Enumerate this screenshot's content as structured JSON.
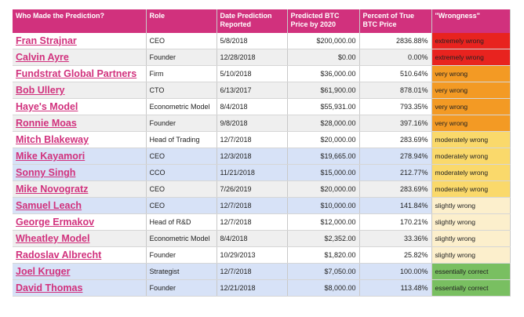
{
  "headers": [
    "Who Made the Prediction?",
    "Role",
    "Date Prediction Reported",
    "Predicted BTC Price by 2020",
    "Percent of True BTC Price",
    "\"Wrongness\""
  ],
  "colors": {
    "header_bg": "#d1317d",
    "name_text": "#d1317d",
    "extremely_wrong": "#e8231f",
    "very_wrong": "#f39a24",
    "moderately_wrong": "#fad96b",
    "slightly_wrong": "#fcefcc",
    "essentially_correct": "#79bf61"
  },
  "rows": [
    {
      "name": "Fran Strajnar",
      "role": "CEO",
      "date": "5/8/2018",
      "price": "$200,000.00",
      "percent": "2836.88%",
      "wrongness": "extremely wrong",
      "level": "extremely_wrong",
      "band": "white"
    },
    {
      "name": "Calvin Ayre",
      "role": "Founder",
      "date": "12/28/2018",
      "price": "$0.00",
      "percent": "0.00%",
      "wrongness": "extremely wrong",
      "level": "extremely_wrong",
      "band": "grey"
    },
    {
      "name": "Fundstrat Global Partners",
      "role": "Firm",
      "date": "5/10/2018",
      "price": "$36,000.00",
      "percent": "510.64%",
      "wrongness": "very wrong",
      "level": "very_wrong",
      "band": "white"
    },
    {
      "name": "Bob Ullery",
      "role": "CTO",
      "date": "6/13/2017",
      "price": "$61,900.00",
      "percent": "878.01%",
      "wrongness": "very wrong",
      "level": "very_wrong",
      "band": "grey"
    },
    {
      "name": "Haye's Model",
      "role": "Econometric Model",
      "date": "8/4/2018",
      "price": "$55,931.00",
      "percent": "793.35%",
      "wrongness": "very wrong",
      "level": "very_wrong",
      "band": "white"
    },
    {
      "name": "Ronnie Moas",
      "role": "Founder",
      "date": "9/8/2018",
      "price": "$28,000.00",
      "percent": "397.16%",
      "wrongness": "very wrong",
      "level": "very_wrong",
      "band": "grey"
    },
    {
      "name": "Mitch Blakeway",
      "role": "Head of Trading",
      "date": "12/7/2018",
      "price": "$20,000.00",
      "percent": "283.69%",
      "wrongness": "moderately wrong",
      "level": "moderately_wrong",
      "band": "white"
    },
    {
      "name": "Mike Kayamori",
      "role": "CEO",
      "date": "12/3/2018",
      "price": "$19,665.00",
      "percent": "278.94%",
      "wrongness": "moderately wrong",
      "level": "moderately_wrong",
      "band": "blue"
    },
    {
      "name": "Sonny Singh",
      "role": "CCO",
      "date": "11/21/2018",
      "price": "$15,000.00",
      "percent": "212.77%",
      "wrongness": "moderately wrong",
      "level": "moderately_wrong",
      "band": "blue"
    },
    {
      "name": "Mike Novogratz",
      "role": "CEO",
      "date": "7/26/2019",
      "price": "$20,000.00",
      "percent": "283.69%",
      "wrongness": "moderately wrong",
      "level": "moderately_wrong",
      "band": "grey"
    },
    {
      "name": "Samuel Leach",
      "role": "CEO",
      "date": "12/7/2018",
      "price": "$10,000.00",
      "percent": "141.84%",
      "wrongness": "slightly wrong",
      "level": "slightly_wrong",
      "band": "blue"
    },
    {
      "name": "George Ermakov",
      "role": "Head of R&D",
      "date": "12/7/2018",
      "price": "$12,000.00",
      "percent": "170.21%",
      "wrongness": "slightly wrong",
      "level": "slightly_wrong",
      "band": "white"
    },
    {
      "name": "Wheatley Model",
      "role": "Econometric Model",
      "date": "8/4/2018",
      "price": "$2,352.00",
      "percent": "33.36%",
      "wrongness": "slightly wrong",
      "level": "slightly_wrong",
      "band": "grey"
    },
    {
      "name": "Radoslav Albrecht",
      "role": "Founder",
      "date": "10/29/2013",
      "price": "$1,820.00",
      "percent": "25.82%",
      "wrongness": "slightly wrong",
      "level": "slightly_wrong",
      "band": "white"
    },
    {
      "name": "Joel Kruger",
      "role": "Strategist",
      "date": "12/7/2018",
      "price": "$7,050.00",
      "percent": "100.00%",
      "wrongness": "essentially correct",
      "level": "essentially_correct",
      "band": "blue"
    },
    {
      "name": "David Thomas",
      "role": "Founder",
      "date": "12/21/2018",
      "price": "$8,000.00",
      "percent": "113.48%",
      "wrongness": "essentially correct",
      "level": "essentially_correct",
      "band": "blue"
    }
  ]
}
